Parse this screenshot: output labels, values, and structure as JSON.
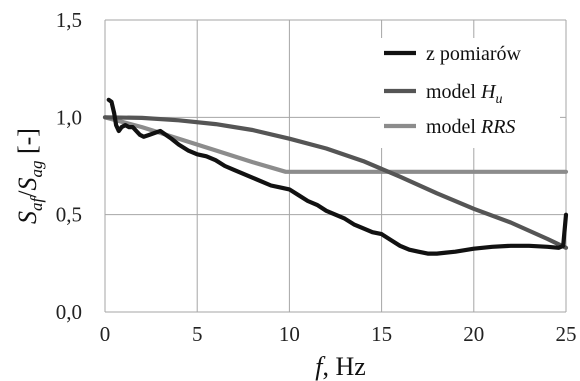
{
  "chart_data": {
    "type": "line",
    "xlabel": "f, Hz",
    "xlabel_var": "f",
    "xlabel_unit": ", Hz",
    "ylabel_parts": {
      "s1": "S",
      "sub1": "af",
      "slash": "/",
      "s2": "S",
      "sub2": "ag",
      "unit": " [-]"
    },
    "xlim": [
      0,
      25
    ],
    "ylim": [
      0,
      1.5
    ],
    "x_ticks": [
      0,
      5,
      10,
      15,
      20,
      25
    ],
    "x_tick_labels": [
      "0",
      "5",
      "10",
      "15",
      "20",
      "25"
    ],
    "y_ticks": [
      0,
      0.5,
      1.0,
      1.5
    ],
    "y_tick_labels": [
      "0,0",
      "0,5",
      "1,0",
      "1,5"
    ],
    "grid": true,
    "legend_position": "top-right",
    "series": [
      {
        "name": "z pomiarów",
        "legend_prefix": "z pomiarów",
        "legend_italic": "",
        "color": "#111111",
        "points": [
          [
            0.2,
            1.09
          ],
          [
            0.35,
            1.08
          ],
          [
            0.5,
            1.02
          ],
          [
            0.6,
            0.96
          ],
          [
            0.75,
            0.93
          ],
          [
            0.9,
            0.95
          ],
          [
            1.1,
            0.96
          ],
          [
            1.3,
            0.95
          ],
          [
            1.5,
            0.95
          ],
          [
            1.7,
            0.93
          ],
          [
            1.9,
            0.91
          ],
          [
            2.1,
            0.9
          ],
          [
            2.4,
            0.91
          ],
          [
            2.7,
            0.92
          ],
          [
            3.0,
            0.93
          ],
          [
            3.3,
            0.91
          ],
          [
            3.6,
            0.89
          ],
          [
            4.0,
            0.86
          ],
          [
            4.5,
            0.83
          ],
          [
            5.0,
            0.81
          ],
          [
            5.5,
            0.8
          ],
          [
            6.0,
            0.78
          ],
          [
            6.5,
            0.75
          ],
          [
            7.0,
            0.73
          ],
          [
            7.5,
            0.71
          ],
          [
            8.0,
            0.69
          ],
          [
            8.5,
            0.67
          ],
          [
            9.0,
            0.65
          ],
          [
            9.5,
            0.64
          ],
          [
            10.0,
            0.63
          ],
          [
            10.5,
            0.6
          ],
          [
            11.0,
            0.57
          ],
          [
            11.5,
            0.55
          ],
          [
            12.0,
            0.52
          ],
          [
            12.5,
            0.5
          ],
          [
            13.0,
            0.48
          ],
          [
            13.5,
            0.45
          ],
          [
            14.0,
            0.43
          ],
          [
            14.5,
            0.41
          ],
          [
            15.0,
            0.4
          ],
          [
            15.5,
            0.37
          ],
          [
            16.0,
            0.34
          ],
          [
            16.5,
            0.32
          ],
          [
            17.0,
            0.31
          ],
          [
            17.5,
            0.3
          ],
          [
            18.0,
            0.3
          ],
          [
            18.5,
            0.305
          ],
          [
            19.0,
            0.31
          ],
          [
            20.0,
            0.325
          ],
          [
            21.0,
            0.335
          ],
          [
            22.0,
            0.34
          ],
          [
            23.0,
            0.34
          ],
          [
            24.0,
            0.335
          ],
          [
            24.6,
            0.33
          ],
          [
            24.85,
            0.34
          ],
          [
            25.0,
            0.5
          ]
        ]
      },
      {
        "name": "model Hu",
        "legend_prefix": "model  ",
        "legend_italic": "H",
        "legend_sub": "u",
        "color": "#555555",
        "points": [
          [
            0,
            1.0
          ],
          [
            2,
            0.997
          ],
          [
            4,
            0.985
          ],
          [
            6,
            0.965
          ],
          [
            8,
            0.935
          ],
          [
            10,
            0.89
          ],
          [
            12,
            0.84
          ],
          [
            14,
            0.775
          ],
          [
            16,
            0.695
          ],
          [
            18,
            0.61
          ],
          [
            20,
            0.53
          ],
          [
            22,
            0.46
          ],
          [
            24,
            0.375
          ],
          [
            25,
            0.33
          ]
        ]
      },
      {
        "name": "model RRS",
        "legend_prefix": "model  ",
        "legend_italic": "RRS",
        "legend_sub": "",
        "color": "#8c8c8c",
        "points": [
          [
            0,
            1.0
          ],
          [
            2,
            0.95
          ],
          [
            4,
            0.89
          ],
          [
            6,
            0.83
          ],
          [
            8,
            0.77
          ],
          [
            9.8,
            0.72
          ],
          [
            25,
            0.72
          ]
        ]
      }
    ]
  }
}
